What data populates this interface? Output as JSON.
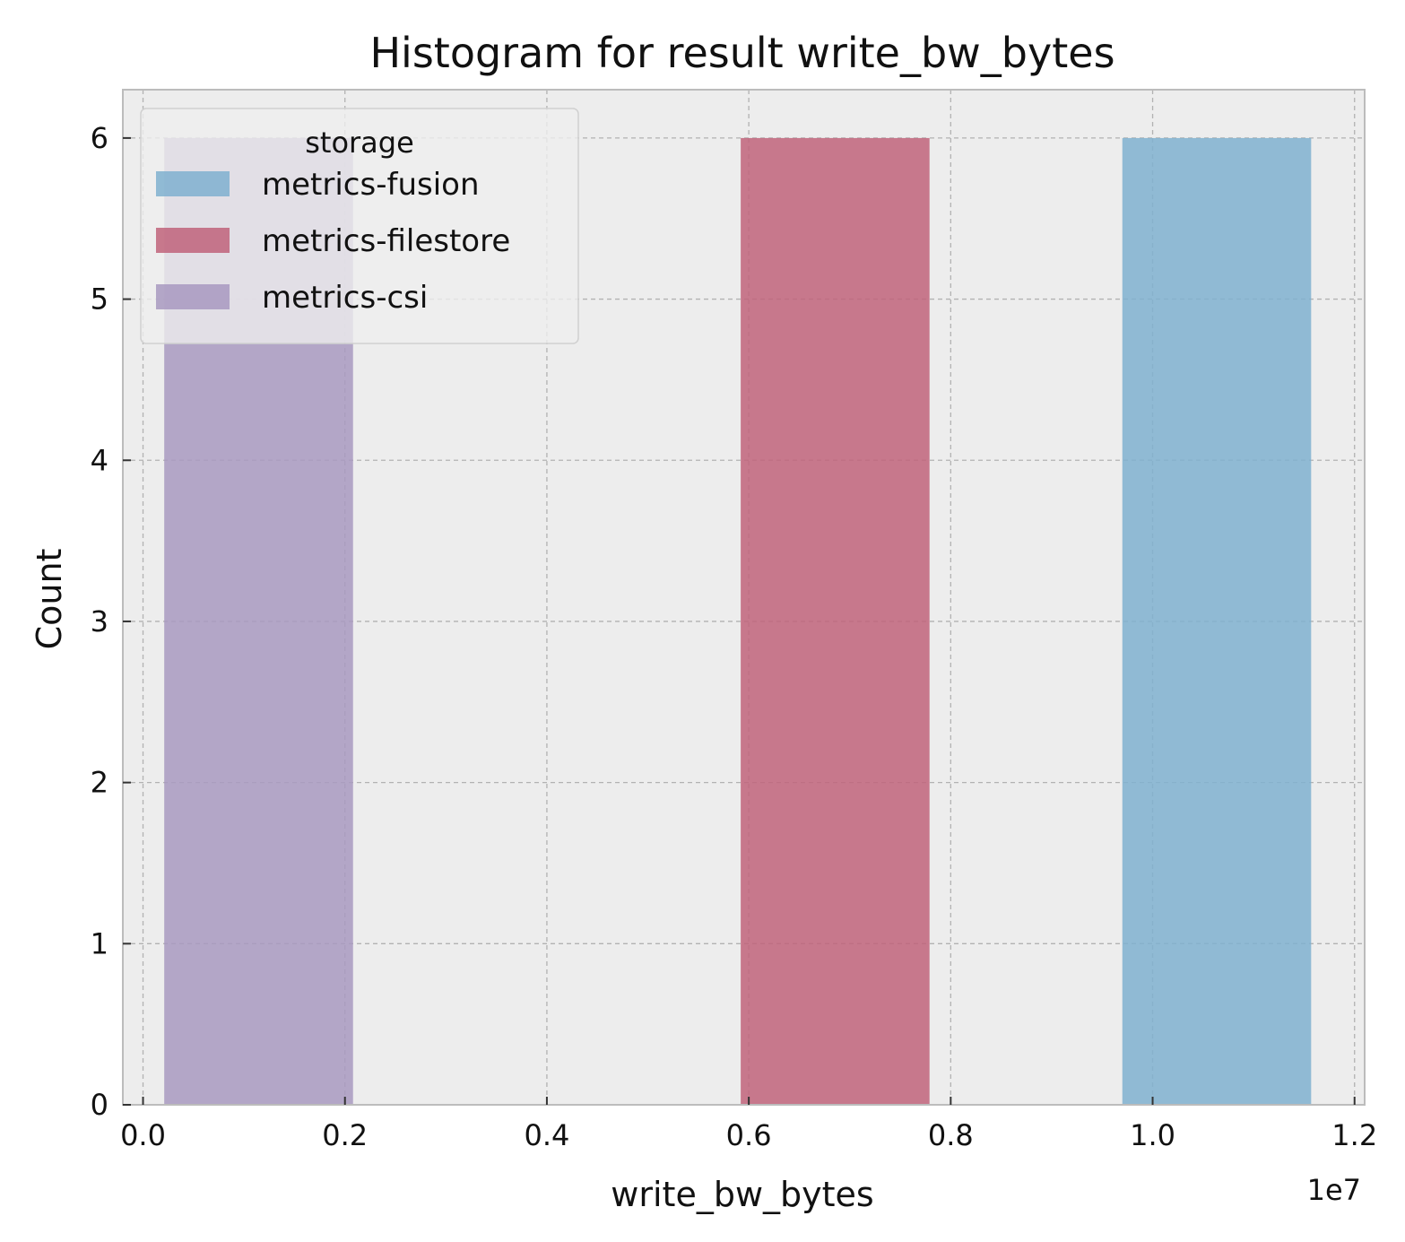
{
  "chart_data": {
    "type": "bar",
    "title": "Histogram for result write_bw_bytes",
    "xlabel": "write_bw_bytes",
    "ylabel": "Count",
    "x_offset_label": "1e7",
    "xlim": [
      -0.02,
      1.21
    ],
    "ylim": [
      0,
      6.3
    ],
    "x_ticks": [
      0.0,
      0.2,
      0.4,
      0.6,
      0.8,
      1.0,
      1.2
    ],
    "x_tick_labels": [
      "0.0",
      "0.2",
      "0.4",
      "0.6",
      "0.8",
      "1.0",
      "1.2"
    ],
    "y_ticks": [
      0,
      1,
      2,
      3,
      4,
      5,
      6
    ],
    "y_tick_labels": [
      "0",
      "1",
      "2",
      "3",
      "4",
      "5",
      "6"
    ],
    "grid": true,
    "legend_title": "storage",
    "legend_position": "top-left",
    "series": [
      {
        "name": "metrics-fusion",
        "color": "#7fb0cf",
        "bins": [
          {
            "x0": 0.97,
            "x1": 1.157,
            "count": 6
          }
        ]
      },
      {
        "name": "metrics-filestore",
        "color": "#c0637a",
        "bins": [
          {
            "x0": 0.592,
            "x1": 0.779,
            "count": 6
          }
        ]
      },
      {
        "name": "metrics-csi",
        "color": "#a899c0",
        "bins": [
          {
            "x0": 0.021,
            "x1": 0.208,
            "count": 6
          }
        ]
      }
    ]
  }
}
